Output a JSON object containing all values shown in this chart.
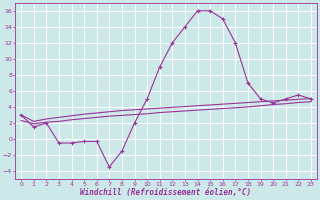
{
  "x": [
    0,
    1,
    2,
    3,
    4,
    5,
    6,
    7,
    8,
    9,
    10,
    11,
    12,
    13,
    14,
    15,
    16,
    17,
    18,
    19,
    20,
    21,
    22,
    23
  ],
  "windchill": [
    3,
    1.5,
    2,
    -0.5,
    -0.5,
    -0.3,
    -0.3,
    -3.5,
    -1.5,
    2,
    5,
    9,
    12,
    14,
    16,
    16,
    15,
    12,
    7,
    5,
    4.5,
    5,
    5.5,
    5
  ],
  "line2": [
    3.0,
    2.2,
    2.5,
    2.7,
    2.9,
    3.1,
    3.25,
    3.4,
    3.55,
    3.65,
    3.75,
    3.85,
    3.95,
    4.05,
    4.15,
    4.25,
    4.35,
    4.45,
    4.55,
    4.65,
    4.75,
    4.85,
    4.95,
    5.05
  ],
  "line3": [
    2.3,
    1.9,
    2.1,
    2.2,
    2.4,
    2.55,
    2.7,
    2.85,
    2.95,
    3.05,
    3.15,
    3.3,
    3.4,
    3.5,
    3.6,
    3.7,
    3.8,
    3.9,
    4.0,
    4.15,
    4.3,
    4.4,
    4.55,
    4.65
  ],
  "color": "#993399",
  "bg_color": "#cce8e8",
  "grid_color": "#ffffff",
  "xlabel": "Windchill (Refroidissement éolien,°C)",
  "ylim": [
    -5,
    17
  ],
  "xlim": [
    -0.5,
    23.5
  ],
  "yticks": [
    -4,
    -2,
    0,
    2,
    4,
    6,
    8,
    10,
    12,
    14,
    16
  ],
  "xticks": [
    0,
    1,
    2,
    3,
    4,
    5,
    6,
    7,
    8,
    9,
    10,
    11,
    12,
    13,
    14,
    15,
    16,
    17,
    18,
    19,
    20,
    21,
    22,
    23
  ],
  "tick_fontsize": 4.5,
  "xlabel_fontsize": 5.5
}
